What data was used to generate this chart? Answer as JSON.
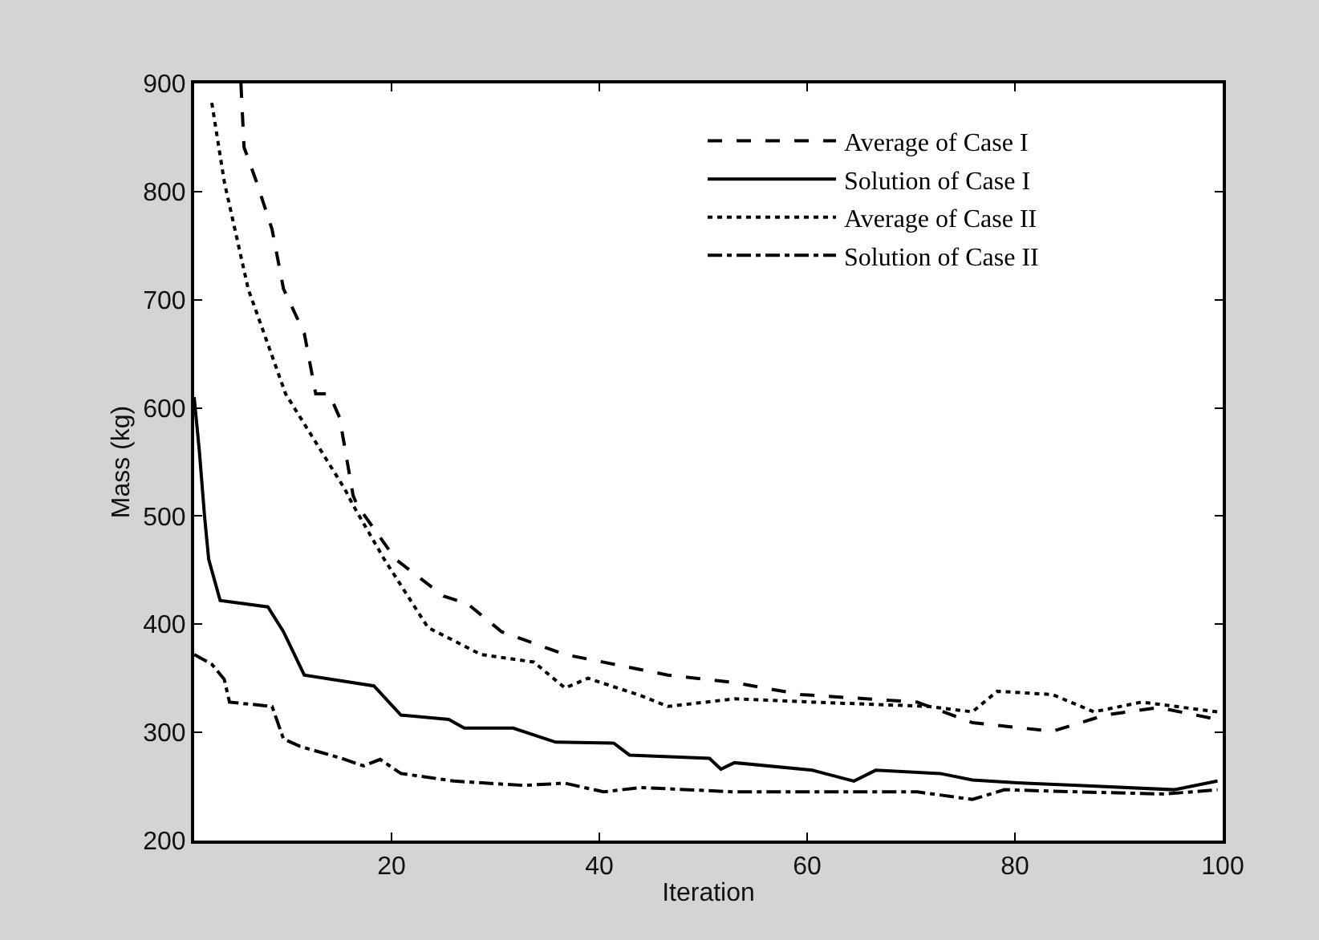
{
  "chart_data": {
    "type": "line",
    "xlabel": "Iteration",
    "ylabel": "Mass (kg)",
    "xlim": [
      1,
      100
    ],
    "xticks": [
      20,
      40,
      60,
      80,
      100
    ],
    "ylim": [
      200,
      900
    ],
    "yticks": [
      200,
      300,
      400,
      500,
      600,
      700,
      800,
      900
    ],
    "grid": false,
    "legend": "top right",
    "marker": "none",
    "series": [
      {
        "name": "Average of Case I",
        "color": "#000000",
        "line_style": "dashed",
        "x": [
          5.5,
          5.8,
          7,
          8.5,
          9.6,
          11.6,
          12.7,
          14,
          15,
          16.3,
          16.7,
          20.4,
          25,
          27.3,
          30.6,
          36.7,
          41.4,
          46.6,
          53,
          59.4,
          70.6,
          75.9,
          83.6,
          88.7,
          93.8,
          99.5
        ],
        "values": [
          900,
          841,
          809,
          765,
          710,
          669,
          613,
          613,
          591,
          519,
          510,
          460,
          426,
          419,
          393,
          372,
          363,
          353,
          346,
          335,
          328,
          309,
          301,
          316,
          323,
          312
        ]
      },
      {
        "name": "Solution of Case I",
        "color": "#000000",
        "line_style": "solid",
        "x": [
          1,
          1.5,
          2,
          2.4,
          3.5,
          8.1,
          9.6,
          11.6,
          18.3,
          20.9,
          25.5,
          27,
          31.7,
          35.8,
          41.4,
          42.9,
          50.6,
          51.7,
          53,
          60.5,
          64.5,
          66.6,
          72.8,
          75.9,
          81,
          86.1,
          95.3,
          99.5
        ],
        "values": [
          610,
          560,
          500,
          460,
          422,
          416,
          393,
          353,
          343,
          316,
          312,
          304,
          304,
          291,
          290,
          279,
          276,
          266,
          272,
          265,
          255,
          265,
          262,
          256,
          253,
          251,
          247,
          255
        ]
      },
      {
        "name": "Average of Case II",
        "color": "#000000",
        "line_style": "dotted",
        "x": [
          2.7,
          3.9,
          6.2,
          9.8,
          15.5,
          16.3,
          19.3,
          23.5,
          28.6,
          33.7,
          36.7,
          38.9,
          44,
          46.6,
          53,
          60.5,
          71.7,
          75.9,
          78.3,
          83.6,
          87.6,
          92.2,
          99.5
        ],
        "values": [
          882,
          809,
          710,
          613,
          525,
          510,
          460,
          397,
          372,
          365,
          341,
          350,
          334,
          324,
          331,
          328,
          324,
          319,
          338,
          335,
          319,
          328,
          319
        ]
      },
      {
        "name": "Solution of Case II",
        "color": "#000000",
        "line_style": "dashdot",
        "x": [
          1,
          2.7,
          3.9,
          4.4,
          8.5,
          9.6,
          11.2,
          15.2,
          17.3,
          18.9,
          20.9,
          26,
          32.7,
          36.7,
          40.4,
          44,
          53,
          57.9,
          70.6,
          75.9,
          79,
          86.1,
          94.4,
          99.5
        ],
        "values": [
          372,
          363,
          349,
          328,
          324,
          294,
          287,
          276,
          269,
          275,
          262,
          255,
          251,
          253,
          245,
          249,
          245,
          245,
          245,
          238,
          247,
          245,
          243,
          247
        ]
      }
    ]
  }
}
